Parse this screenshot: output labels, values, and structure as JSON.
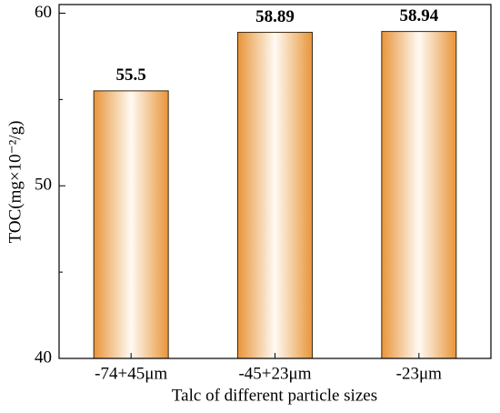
{
  "chart_data": {
    "type": "bar",
    "categories": [
      "-74+45μm",
      "-45+23μm",
      "-23μm"
    ],
    "values": [
      55.5,
      58.89,
      58.94
    ],
    "color": "#e8953a",
    "x_label": "Talc of different particle sizes",
    "y_label": "TOC(mg×10⁻²/g)",
    "ylim": [
      40,
      60.5
    ],
    "yticks": [
      40,
      50,
      60
    ],
    "yminorticks": [
      45,
      55
    ],
    "grid": false
  }
}
